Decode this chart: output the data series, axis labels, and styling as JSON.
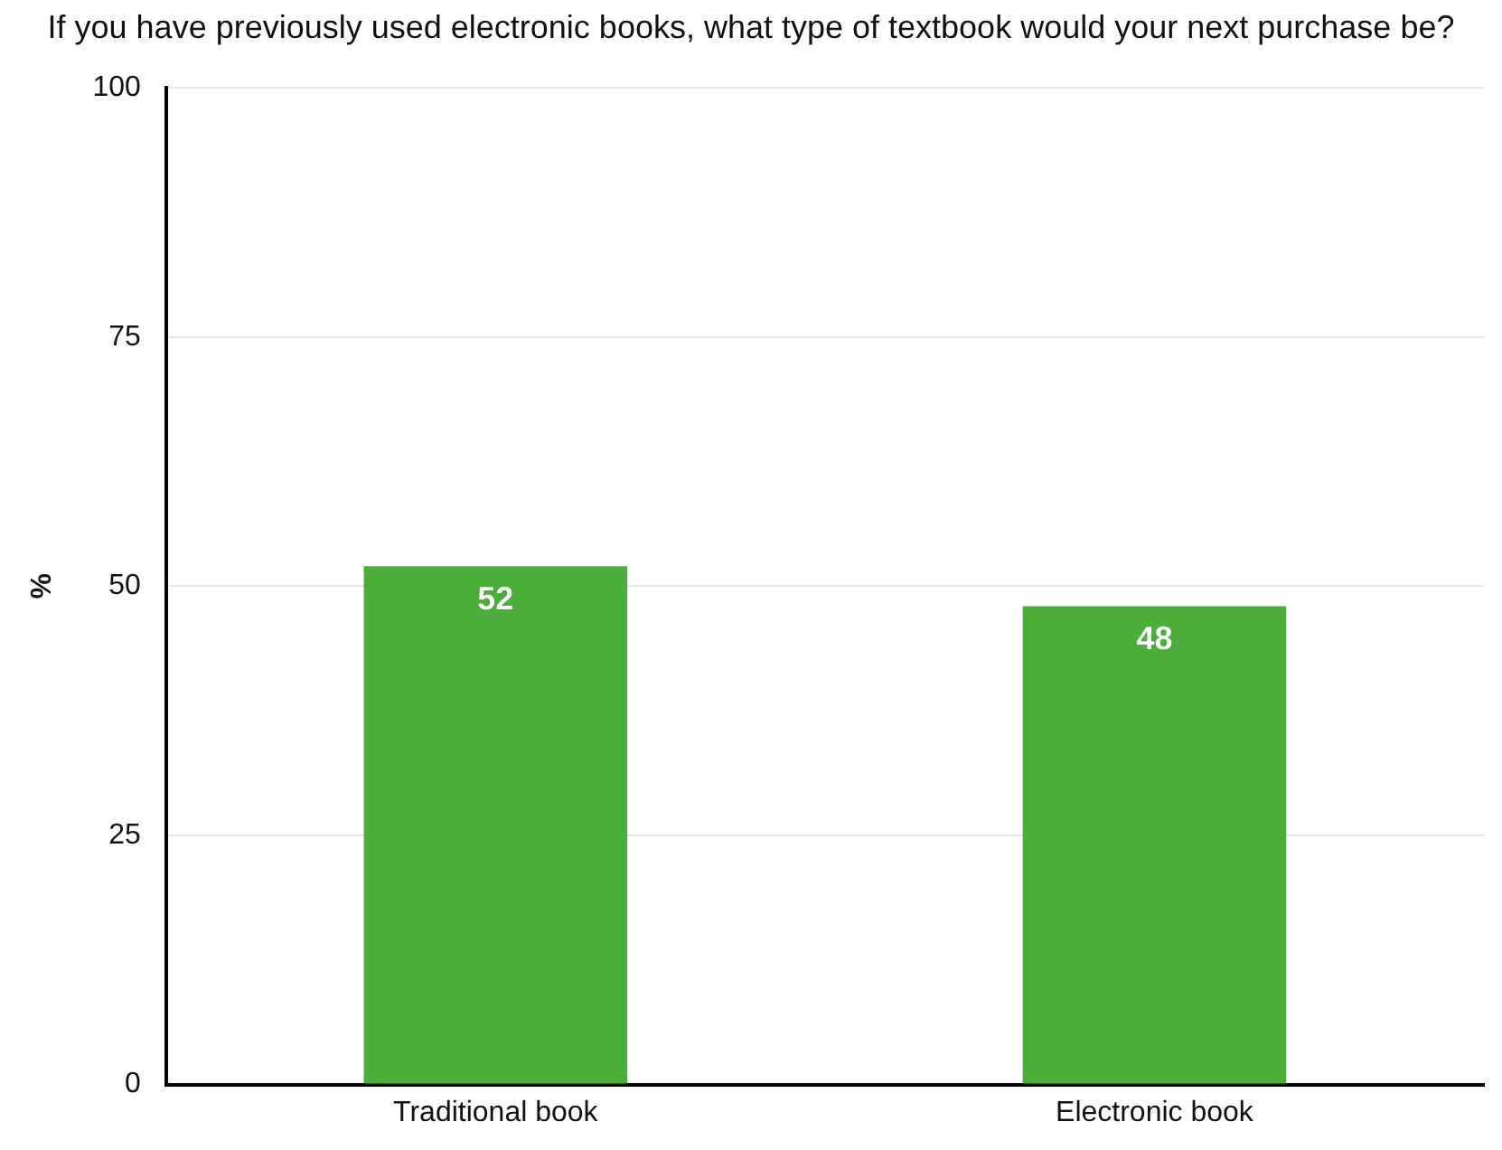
{
  "chart_data": {
    "type": "bar",
    "title": "If you have previously used electronic books, what type of textbook would your next purchase be?",
    "ylabel": "%",
    "categories": [
      "Traditional book",
      "Electronic book"
    ],
    "values": [
      52,
      48
    ],
    "color": "#4cae3a",
    "ylim": [
      0,
      100
    ],
    "yticks": [
      0,
      25,
      50,
      75,
      100
    ],
    "grid": "y",
    "legend": false,
    "data_labels": true
  }
}
